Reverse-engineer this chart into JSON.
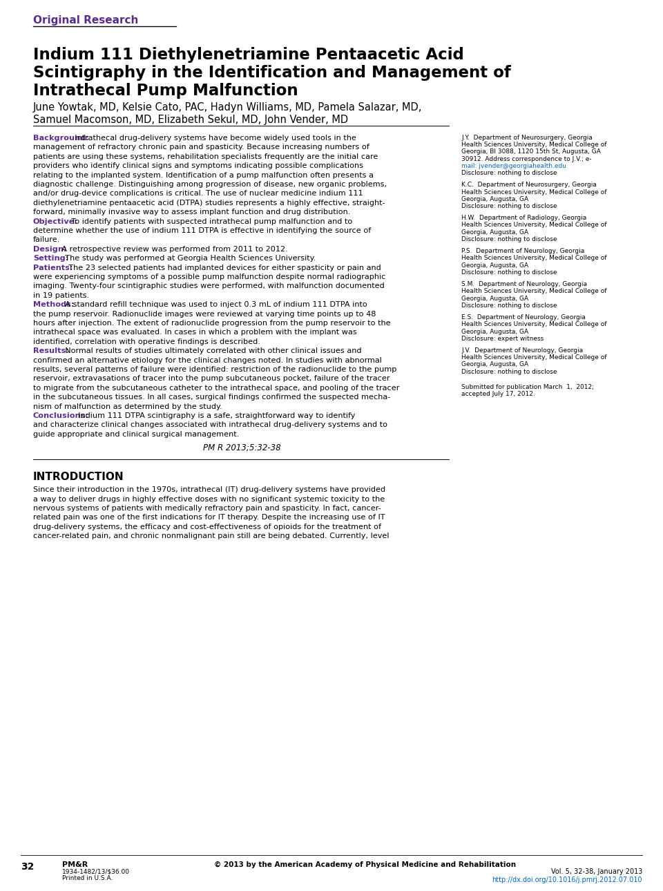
{
  "bg_color": "#ffffff",
  "purple_color": "#5B2C8D",
  "black_color": "#000000",
  "blue_link_color": "#0066CC",
  "original_research": "Original Research",
  "title_line1": "Indium 111 Diethylenetriamine Pentaacetic Acid",
  "title_line2": "Scintigraphy in the Identification and Management of",
  "title_line3": "Intrathecal Pump Malfunction",
  "author_line1": "June Yowtak, MD, Kelsie Cato, PAC, Hadyn Williams, MD, Pamela Salazar, MD,",
  "author_line2": "Samuel Macomson, MD, Elizabeth Sekul, MD, John Vender, MD",
  "abstract_lines": [
    [
      "Background:",
      true,
      "  Intrathecal drug-delivery systems have become widely used tools in the"
    ],
    [
      "",
      false,
      "management of refractory chronic pain and spasticity. Because increasing numbers of"
    ],
    [
      "",
      false,
      "patients are using these systems, rehabilitation specialists frequently are the initial care"
    ],
    [
      "",
      false,
      "providers who identify clinical signs and symptoms indicating possible complications"
    ],
    [
      "",
      false,
      "relating to the implanted system. Identification of a pump malfunction often presents a"
    ],
    [
      "",
      false,
      "diagnostic challenge. Distinguishing among progression of disease, new organic problems,"
    ],
    [
      "",
      false,
      "and/or drug-device complications is critical. The use of nuclear medicine indium 111"
    ],
    [
      "",
      false,
      "diethylenetriamine pentaacetic acid (DTPA) studies represents a highly effective, straight-"
    ],
    [
      "",
      false,
      "forward, minimally invasive way to assess implant function and drug distribution."
    ],
    [
      "Objective:",
      true,
      "  To identify patients with suspected intrathecal pump malfunction and to"
    ],
    [
      "",
      false,
      "determine whether the use of indium 111 DTPA is effective in identifying the source of"
    ],
    [
      "",
      false,
      "failure."
    ],
    [
      "Design:",
      true,
      "  A retrospective review was performed from 2011 to 2012."
    ],
    [
      "Setting:",
      true,
      "  The study was performed at Georgia Health Sciences University."
    ],
    [
      "Patients:",
      true,
      "  The 23 selected patients had implanted devices for either spasticity or pain and"
    ],
    [
      "",
      false,
      "were experiencing symptoms of a possible pump malfunction despite normal radiographic"
    ],
    [
      "",
      false,
      "imaging. Twenty-four scintigraphic studies were performed, with malfunction documented"
    ],
    [
      "",
      false,
      "in 19 patients."
    ],
    [
      "Methods:",
      true,
      "  A standard refill technique was used to inject 0.3 mL of indium 111 DTPA into"
    ],
    [
      "",
      false,
      "the pump reservoir. Radionuclide images were reviewed at varying time points up to 48"
    ],
    [
      "",
      false,
      "hours after injection. The extent of radionuclide progression from the pump reservoir to the"
    ],
    [
      "",
      false,
      "intrathecal space was evaluated. In cases in which a problem with the implant was"
    ],
    [
      "",
      false,
      "identified, correlation with operative findings is described."
    ],
    [
      "Results:",
      true,
      "  Normal results of studies ultimately correlated with other clinical issues and"
    ],
    [
      "",
      false,
      "confirmed an alternative etiology for the clinical changes noted. In studies with abnormal"
    ],
    [
      "",
      false,
      "results, several patterns of failure were identified: restriction of the radionuclide to the pump"
    ],
    [
      "",
      false,
      "reservoir, extravasations of tracer into the pump subcutaneous pocket, failure of the tracer"
    ],
    [
      "",
      false,
      "to migrate from the subcutaneous catheter to the intrathecal space, and pooling of the tracer"
    ],
    [
      "",
      false,
      "in the subcutaneous tissues. In all cases, surgical findings confirmed the suspected mecha-"
    ],
    [
      "",
      false,
      "nism of malfunction as determined by the study."
    ],
    [
      "Conclusions:",
      true,
      "  Indium 111 DTPA scintigraphy is a safe, straightforward way to identify"
    ],
    [
      "",
      false,
      "and characterize clinical changes associated with intrathecal drug-delivery systems and to"
    ],
    [
      "",
      false,
      "guide appropriate and clinical surgical management."
    ]
  ],
  "citation": "PM R 2013;5:32-38",
  "intro_heading": "INTRODUCTION",
  "intro_lines": [
    "Since their introduction in the 1970s, intrathecal (IT) drug-delivery systems have provided",
    "a way to deliver drugs in highly effective doses with no significant systemic toxicity to the",
    "nervous systems of patients with medically refractory pain and spasticity. In fact, cancer-",
    "related pain was one of the first indications for IT therapy. Despite the increasing use of IT",
    "drug-delivery systems, the efficacy and cost-effectiveness of opioids for the treatment of",
    "cancer-related pain, and chronic nonmalignant pain still are being debated. Currently, level"
  ],
  "sidebar_entries": [
    {
      "abbr": "J.Y.",
      "lines": [
        "J.Y.  Department of Neurosurgery, Georgia",
        "Health Sciences University, Medical College of",
        "Georgia, Bl 3088, 1120 15th St, Augusta, GA",
        "30912. Address correspondence to J.V.; e-",
        "mail: jvender@georgiahealth.edu",
        "Disclosure: nothing to disclose"
      ],
      "email_line": 4
    },
    {
      "abbr": "K.C.",
      "lines": [
        "K.C.  Department of Neurosurgery, Georgia",
        "Health Sciences University, Medical College of",
        "Georgia, Augusta, GA",
        "Disclosure: nothing to disclose"
      ],
      "email_line": -1
    },
    {
      "abbr": "H.W.",
      "lines": [
        "H.W.  Department of Radiology, Georgia",
        "Health Sciences University, Medical College of",
        "Georgia, Augusta, GA",
        "Disclosure: nothing to disclose"
      ],
      "email_line": -1
    },
    {
      "abbr": "P.S.",
      "lines": [
        "P.S.  Department of Neurology, Georgia",
        "Health Sciences University, Medical College of",
        "Georgia, Augusta, GA",
        "Disclosure: nothing to disclose"
      ],
      "email_line": -1
    },
    {
      "abbr": "S.M.",
      "lines": [
        "S.M.  Department of Neurology, Georgia",
        "Health Sciences University, Medical College of",
        "Georgia, Augusta, GA",
        "Disclosure: nothing to disclose"
      ],
      "email_line": -1
    },
    {
      "abbr": "E.S.",
      "lines": [
        "E.S.  Department of Neurology, Georgia",
        "Health Sciences University, Medical College of",
        "Georgia, Augusta, GA",
        "Disclosure: expert witness"
      ],
      "email_line": -1
    },
    {
      "abbr": "J.V.",
      "lines": [
        "J.V.  Department of Neurology, Georgia",
        "Health Sciences University, Medical College of",
        "Georgia, Augusta, GA",
        "Disclosure: nothing to disclose"
      ],
      "email_line": -1
    }
  ],
  "submitted_lines": [
    "Submitted for publication March  1,  2012;",
    "accepted July 17, 2012."
  ],
  "footer_page": "32",
  "footer_journal": "PM&R",
  "footer_issn": "1934-1482/13/$36.00",
  "footer_printed": "Printed in U.S.A.",
  "footer_copyright": "© 2013 by the American Academy of Physical Medicine and Rehabilitation",
  "footer_vol": "Vol. 5, 32-38, January 2013",
  "footer_doi": "http://dx.doi.org/10.1016/j.pmrj.2012.07.010"
}
